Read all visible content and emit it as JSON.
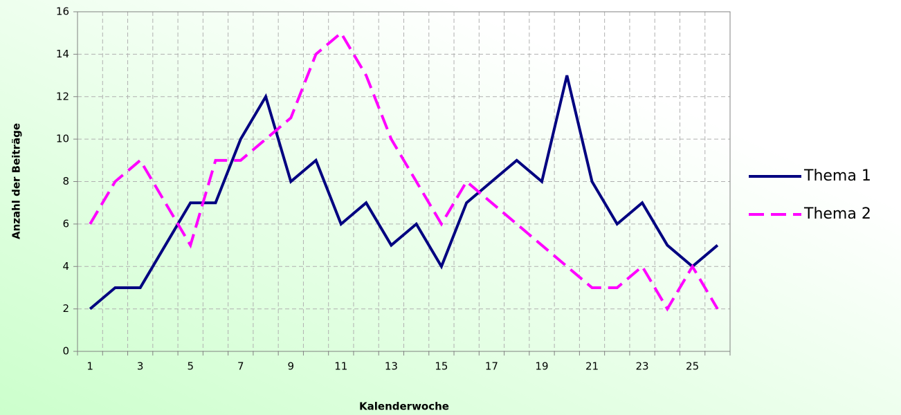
{
  "chart_data": {
    "type": "line",
    "x_label": "Kalenderwoche",
    "y_label": "Anzahl der Beiträge",
    "categories": [
      "1",
      null,
      "3",
      null,
      "5",
      null,
      "7",
      null,
      "9",
      null,
      "11",
      null,
      "13",
      null,
      "15",
      null,
      "17",
      null,
      "19",
      null,
      "21",
      null,
      "23",
      null,
      "25",
      null
    ],
    "series": [
      {
        "name": "Thema 1",
        "color": "#000080",
        "dashed": false,
        "values": [
          2,
          3,
          3,
          5,
          7,
          7,
          10,
          12,
          8,
          9,
          6,
          7,
          5,
          6,
          4,
          7,
          8,
          9,
          8,
          13,
          8,
          6,
          7,
          5,
          4,
          5
        ]
      },
      {
        "name": "Thema 2",
        "color": "#ff00ff",
        "dashed": true,
        "values": [
          6,
          8,
          9,
          7,
          5,
          9,
          9,
          10,
          11,
          14,
          15,
          13,
          10,
          8,
          6,
          8,
          7,
          6,
          5,
          4,
          3,
          3,
          4,
          2,
          4,
          2
        ]
      }
    ],
    "ylim": [
      0,
      16
    ],
    "yticks": [
      0,
      2,
      4,
      6,
      8,
      10,
      12,
      14,
      16
    ],
    "grid": true,
    "legend": "right"
  }
}
